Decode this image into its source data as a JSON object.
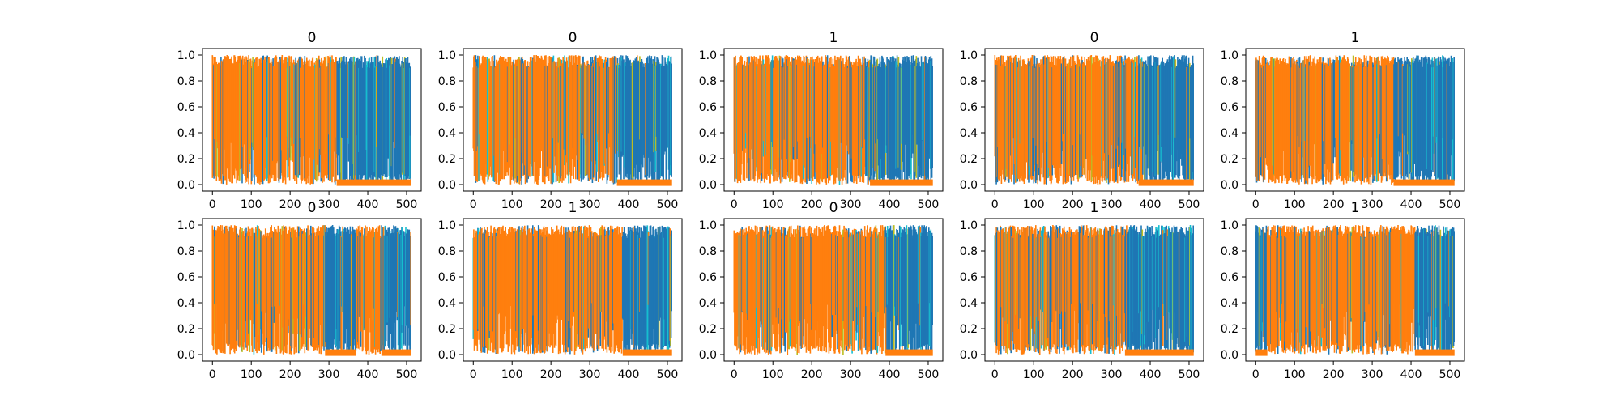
{
  "figure": {
    "background": "#ffffff",
    "series_colors": [
      "#1f77b4",
      "#ff7f0e",
      "#17becf",
      "#bcbd22"
    ]
  },
  "chart_data": [
    {
      "type": "line",
      "title": "0",
      "xlim": [
        0,
        512
      ],
      "ylim": [
        0,
        1
      ],
      "xticks": [
        0,
        100,
        200,
        300,
        400,
        500
      ],
      "yticks": [
        0.0,
        0.2,
        0.4,
        0.6,
        0.8,
        1.0
      ],
      "segments": [
        {
          "x": [
            0,
            320
          ],
          "dominant": "orange"
        },
        {
          "x": [
            320,
            512
          ],
          "dominant": "blue"
        }
      ],
      "grid": false
    },
    {
      "type": "line",
      "title": "0",
      "xlim": [
        0,
        512
      ],
      "ylim": [
        0,
        1
      ],
      "xticks": [
        0,
        100,
        200,
        300,
        400,
        500
      ],
      "yticks": [
        0.0,
        0.2,
        0.4,
        0.6,
        0.8,
        1.0
      ],
      "segments": [
        {
          "x": [
            0,
            370
          ],
          "dominant": "orange"
        },
        {
          "x": [
            370,
            512
          ],
          "dominant": "blue"
        }
      ],
      "grid": false
    },
    {
      "type": "line",
      "title": "1",
      "xlim": [
        0,
        512
      ],
      "ylim": [
        0,
        1
      ],
      "xticks": [
        0,
        100,
        200,
        300,
        400,
        500
      ],
      "yticks": [
        0.0,
        0.2,
        0.4,
        0.6,
        0.8,
        1.0
      ],
      "segments": [
        {
          "x": [
            0,
            350
          ],
          "dominant": "orange"
        },
        {
          "x": [
            350,
            512
          ],
          "dominant": "blue"
        }
      ],
      "grid": false
    },
    {
      "type": "line",
      "title": "0",
      "xlim": [
        0,
        512
      ],
      "ylim": [
        0,
        1
      ],
      "xticks": [
        0,
        100,
        200,
        300,
        400,
        500
      ],
      "yticks": [
        0.0,
        0.2,
        0.4,
        0.6,
        0.8,
        1.0
      ],
      "segments": [
        {
          "x": [
            0,
            370
          ],
          "dominant": "orange"
        },
        {
          "x": [
            370,
            512
          ],
          "dominant": "blue"
        }
      ],
      "grid": false
    },
    {
      "type": "line",
      "title": "1",
      "xlim": [
        0,
        512
      ],
      "ylim": [
        0,
        1
      ],
      "xticks": [
        0,
        100,
        200,
        300,
        400,
        500
      ],
      "yticks": [
        0.0,
        0.2,
        0.4,
        0.6,
        0.8,
        1.0
      ],
      "segments": [
        {
          "x": [
            0,
            355
          ],
          "dominant": "orange"
        },
        {
          "x": [
            355,
            512
          ],
          "dominant": "blue"
        }
      ],
      "grid": false
    },
    {
      "type": "line",
      "title": "0",
      "xlim": [
        0,
        512
      ],
      "ylim": [
        0,
        1
      ],
      "xticks": [
        0,
        100,
        200,
        300,
        400,
        500
      ],
      "yticks": [
        0.0,
        0.2,
        0.4,
        0.6,
        0.8,
        1.0
      ],
      "segments": [
        {
          "x": [
            0,
            290
          ],
          "dominant": "orange"
        },
        {
          "x": [
            290,
            370
          ],
          "dominant": "blue"
        },
        {
          "x": [
            370,
            435
          ],
          "dominant": "orange"
        },
        {
          "x": [
            435,
            512
          ],
          "dominant": "blue"
        }
      ],
      "grid": false
    },
    {
      "type": "line",
      "title": "1",
      "xlim": [
        0,
        512
      ],
      "ylim": [
        0,
        1
      ],
      "xticks": [
        0,
        100,
        200,
        300,
        400,
        500
      ],
      "yticks": [
        0.0,
        0.2,
        0.4,
        0.6,
        0.8,
        1.0
      ],
      "segments": [
        {
          "x": [
            0,
            385
          ],
          "dominant": "orange"
        },
        {
          "x": [
            385,
            512
          ],
          "dominant": "blue"
        }
      ],
      "grid": false
    },
    {
      "type": "line",
      "title": "0",
      "xlim": [
        0,
        512
      ],
      "ylim": [
        0,
        1
      ],
      "xticks": [
        0,
        100,
        200,
        300,
        400,
        500
      ],
      "yticks": [
        0.0,
        0.2,
        0.4,
        0.6,
        0.8,
        1.0
      ],
      "segments": [
        {
          "x": [
            0,
            390
          ],
          "dominant": "orange"
        },
        {
          "x": [
            390,
            512
          ],
          "dominant": "blue"
        }
      ],
      "grid": false
    },
    {
      "type": "line",
      "title": "1",
      "xlim": [
        0,
        512
      ],
      "ylim": [
        0,
        1
      ],
      "xticks": [
        0,
        100,
        200,
        300,
        400,
        500
      ],
      "yticks": [
        0.0,
        0.2,
        0.4,
        0.6,
        0.8,
        1.0
      ],
      "segments": [
        {
          "x": [
            0,
            335
          ],
          "dominant": "orange"
        },
        {
          "x": [
            335,
            512
          ],
          "dominant": "blue"
        }
      ],
      "grid": false
    },
    {
      "type": "line",
      "title": "1",
      "xlim": [
        0,
        512
      ],
      "ylim": [
        0,
        1
      ],
      "xticks": [
        0,
        100,
        200,
        300,
        400,
        500
      ],
      "yticks": [
        0.0,
        0.2,
        0.4,
        0.6,
        0.8,
        1.0
      ],
      "segments": [
        {
          "x": [
            0,
            30
          ],
          "dominant": "blue"
        },
        {
          "x": [
            30,
            410
          ],
          "dominant": "orange"
        },
        {
          "x": [
            410,
            512
          ],
          "dominant": "blue"
        }
      ],
      "grid": false
    }
  ]
}
